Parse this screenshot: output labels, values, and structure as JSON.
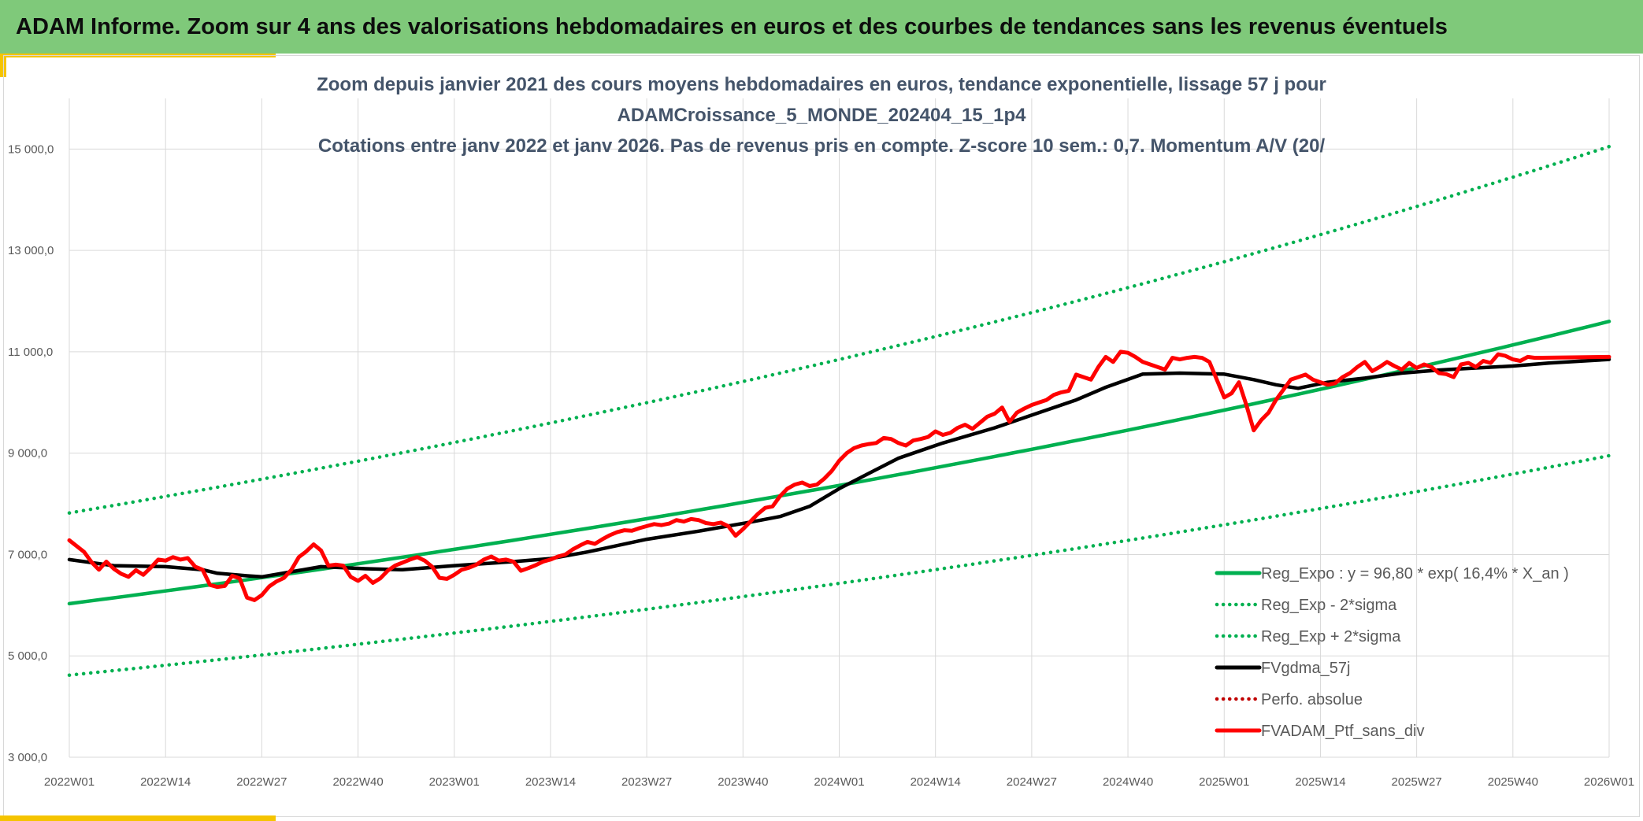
{
  "header": {
    "title": "ADAM Informe. Zoom sur 4 ans des valorisations hebdomadaires en euros et des courbes de tendances sans les revenus éventuels"
  },
  "colors": {
    "banner": "#7fc97a",
    "accent": "#f5c400",
    "trend": "#00b050",
    "fvgdma": "#000000",
    "perfo": "#c00000",
    "portfolio": "#ff0000",
    "grid": "#d9d9d9"
  },
  "chart_data": {
    "type": "line",
    "title_lines": [
      "Zoom depuis janvier 2021 des cours moyens hebdomadaires en euros, tendance exponentielle, lissage 57 j pour",
      "ADAMCroissance_5_MONDE_202404_15_1p4",
      "Cotations entre janv 2022 et janv 2026. Pas de revenus pris en compte. Z-score 10 sem.: 0,7. Momentum A/V (20/"
    ],
    "x_ticks": [
      "2022W01",
      "2022W14",
      "2022W27",
      "2022W40",
      "2023W01",
      "2023W14",
      "2023W27",
      "2023W40",
      "2024W01",
      "2024W14",
      "2024W27",
      "2024W40",
      "2025W01",
      "2025W14",
      "2025W27",
      "2025W40",
      "2026W01"
    ],
    "x_range": [
      0,
      208
    ],
    "y_ticks": [
      "3 000,0",
      "5 000,0",
      "7 000,0",
      "9 000,0",
      "11 000,0",
      "13 000,0",
      "15 000,0"
    ],
    "ylim": [
      3000,
      16000
    ],
    "grid": true,
    "legend_position": "bottom-right",
    "series": [
      {
        "name": "Reg_Expo : y = 96,80 * exp( 16,4% *  X_an )",
        "style": "solid",
        "color": "#00b050",
        "points": [
          [
            0,
            6030
          ],
          [
            208,
            11600
          ]
        ]
      },
      {
        "name": "Reg_Exp - 2*sigma",
        "style": "dotted",
        "color": "#00b050",
        "points": [
          [
            0,
            4620
          ],
          [
            208,
            8950
          ]
        ]
      },
      {
        "name": "Reg_Exp + 2*sigma",
        "style": "dotted",
        "color": "#00b050",
        "points": [
          [
            0,
            7820
          ],
          [
            208,
            15050
          ]
        ]
      },
      {
        "name": "FVgdma_57j",
        "style": "solid",
        "color": "#000000",
        "points": [
          [
            0,
            6900
          ],
          [
            6,
            6780
          ],
          [
            13,
            6760
          ],
          [
            18,
            6700
          ],
          [
            20,
            6630
          ],
          [
            24,
            6580
          ],
          [
            26,
            6560
          ],
          [
            30,
            6660
          ],
          [
            34,
            6760
          ],
          [
            40,
            6720
          ],
          [
            45,
            6700
          ],
          [
            52,
            6780
          ],
          [
            60,
            6860
          ],
          [
            65,
            6920
          ],
          [
            70,
            7050
          ],
          [
            78,
            7300
          ],
          [
            85,
            7460
          ],
          [
            92,
            7640
          ],
          [
            96,
            7750
          ],
          [
            100,
            7950
          ],
          [
            104,
            8300
          ],
          [
            108,
            8600
          ],
          [
            112,
            8900
          ],
          [
            118,
            9200
          ],
          [
            125,
            9500
          ],
          [
            130,
            9750
          ],
          [
            136,
            10050
          ],
          [
            140,
            10300
          ],
          [
            145,
            10560
          ],
          [
            150,
            10580
          ],
          [
            156,
            10560
          ],
          [
            160,
            10450
          ],
          [
            163,
            10350
          ],
          [
            166,
            10280
          ],
          [
            170,
            10400
          ],
          [
            175,
            10480
          ],
          [
            180,
            10580
          ],
          [
            185,
            10640
          ],
          [
            190,
            10680
          ],
          [
            195,
            10720
          ],
          [
            200,
            10780
          ],
          [
            208,
            10850
          ]
        ]
      },
      {
        "name": "Perfo. absolue",
        "style": "dotted",
        "color": "#c00000",
        "points": []
      },
      {
        "name": "FVADAM_Ptf_sans_div",
        "style": "solid",
        "color": "#ff0000",
        "points": [
          [
            0,
            7280
          ],
          [
            2,
            7050
          ],
          [
            3,
            6850
          ],
          [
            4,
            6700
          ],
          [
            5,
            6860
          ],
          [
            6,
            6720
          ],
          [
            7,
            6620
          ],
          [
            8,
            6560
          ],
          [
            9,
            6690
          ],
          [
            10,
            6600
          ],
          [
            11,
            6740
          ],
          [
            12,
            6900
          ],
          [
            13,
            6880
          ],
          [
            14,
            6950
          ],
          [
            15,
            6900
          ],
          [
            16,
            6930
          ],
          [
            17,
            6760
          ],
          [
            18,
            6700
          ],
          [
            19,
            6400
          ],
          [
            20,
            6360
          ],
          [
            21,
            6380
          ],
          [
            22,
            6580
          ],
          [
            23,
            6530
          ],
          [
            24,
            6150
          ],
          [
            25,
            6100
          ],
          [
            26,
            6200
          ],
          [
            27,
            6370
          ],
          [
            28,
            6470
          ],
          [
            29,
            6540
          ],
          [
            30,
            6700
          ],
          [
            31,
            6950
          ],
          [
            32,
            7060
          ],
          [
            33,
            7200
          ],
          [
            34,
            7080
          ],
          [
            35,
            6780
          ],
          [
            36,
            6800
          ],
          [
            37,
            6780
          ],
          [
            38,
            6560
          ],
          [
            39,
            6480
          ],
          [
            40,
            6580
          ],
          [
            41,
            6440
          ],
          [
            42,
            6530
          ],
          [
            43,
            6680
          ],
          [
            44,
            6780
          ],
          [
            45,
            6840
          ],
          [
            46,
            6900
          ],
          [
            47,
            6950
          ],
          [
            48,
            6880
          ],
          [
            49,
            6760
          ],
          [
            50,
            6540
          ],
          [
            51,
            6520
          ],
          [
            52,
            6600
          ],
          [
            53,
            6700
          ],
          [
            54,
            6740
          ],
          [
            55,
            6800
          ],
          [
            56,
            6900
          ],
          [
            57,
            6960
          ],
          [
            58,
            6880
          ],
          [
            59,
            6900
          ],
          [
            60,
            6860
          ],
          [
            61,
            6680
          ],
          [
            62,
            6730
          ],
          [
            63,
            6790
          ],
          [
            64,
            6860
          ],
          [
            65,
            6900
          ],
          [
            66,
            6960
          ],
          [
            67,
            7000
          ],
          [
            68,
            7100
          ],
          [
            69,
            7180
          ],
          [
            70,
            7250
          ],
          [
            71,
            7210
          ],
          [
            72,
            7300
          ],
          [
            73,
            7380
          ],
          [
            74,
            7440
          ],
          [
            75,
            7480
          ],
          [
            76,
            7470
          ],
          [
            77,
            7520
          ],
          [
            78,
            7560
          ],
          [
            79,
            7600
          ],
          [
            80,
            7580
          ],
          [
            81,
            7610
          ],
          [
            82,
            7680
          ],
          [
            83,
            7650
          ],
          [
            84,
            7700
          ],
          [
            85,
            7680
          ],
          [
            86,
            7620
          ],
          [
            87,
            7600
          ],
          [
            88,
            7630
          ],
          [
            89,
            7560
          ],
          [
            90,
            7370
          ],
          [
            91,
            7500
          ],
          [
            92,
            7650
          ],
          [
            93,
            7800
          ],
          [
            94,
            7920
          ],
          [
            95,
            7950
          ],
          [
            96,
            8150
          ],
          [
            97,
            8300
          ],
          [
            98,
            8380
          ],
          [
            99,
            8420
          ],
          [
            100,
            8350
          ],
          [
            101,
            8380
          ],
          [
            102,
            8500
          ],
          [
            103,
            8650
          ],
          [
            104,
            8850
          ],
          [
            105,
            9000
          ],
          [
            106,
            9100
          ],
          [
            107,
            9150
          ],
          [
            108,
            9180
          ],
          [
            109,
            9200
          ],
          [
            110,
            9300
          ],
          [
            111,
            9280
          ],
          [
            112,
            9200
          ],
          [
            113,
            9150
          ],
          [
            114,
            9250
          ],
          [
            115,
            9280
          ],
          [
            116,
            9320
          ],
          [
            117,
            9430
          ],
          [
            118,
            9360
          ],
          [
            119,
            9400
          ],
          [
            120,
            9500
          ],
          [
            121,
            9560
          ],
          [
            122,
            9480
          ],
          [
            123,
            9600
          ],
          [
            124,
            9720
          ],
          [
            125,
            9780
          ],
          [
            126,
            9900
          ],
          [
            127,
            9620
          ],
          [
            128,
            9800
          ],
          [
            129,
            9880
          ],
          [
            130,
            9950
          ],
          [
            131,
            10000
          ],
          [
            132,
            10050
          ],
          [
            133,
            10150
          ],
          [
            134,
            10200
          ],
          [
            135,
            10230
          ],
          [
            136,
            10550
          ],
          [
            137,
            10500
          ],
          [
            138,
            10450
          ],
          [
            139,
            10700
          ],
          [
            140,
            10900
          ],
          [
            141,
            10800
          ],
          [
            142,
            11000
          ],
          [
            143,
            10980
          ],
          [
            144,
            10900
          ],
          [
            145,
            10800
          ],
          [
            146,
            10750
          ],
          [
            147,
            10700
          ],
          [
            148,
            10650
          ],
          [
            149,
            10880
          ],
          [
            150,
            10850
          ],
          [
            151,
            10880
          ],
          [
            152,
            10900
          ],
          [
            153,
            10880
          ],
          [
            154,
            10800
          ],
          [
            155,
            10450
          ],
          [
            156,
            10100
          ],
          [
            157,
            10180
          ],
          [
            158,
            10400
          ],
          [
            159,
            9950
          ],
          [
            160,
            9450
          ],
          [
            161,
            9650
          ],
          [
            162,
            9800
          ],
          [
            163,
            10050
          ],
          [
            164,
            10250
          ],
          [
            165,
            10450
          ],
          [
            166,
            10500
          ],
          [
            167,
            10550
          ],
          [
            168,
            10450
          ],
          [
            169,
            10400
          ],
          [
            170,
            10350
          ],
          [
            171,
            10380
          ],
          [
            172,
            10500
          ],
          [
            173,
            10580
          ],
          [
            174,
            10700
          ],
          [
            175,
            10800
          ],
          [
            176,
            10620
          ],
          [
            177,
            10700
          ],
          [
            178,
            10800
          ],
          [
            179,
            10720
          ],
          [
            180,
            10650
          ],
          [
            181,
            10780
          ],
          [
            182,
            10680
          ],
          [
            183,
            10750
          ],
          [
            184,
            10700
          ],
          [
            185,
            10580
          ],
          [
            186,
            10560
          ],
          [
            187,
            10500
          ],
          [
            188,
            10750
          ],
          [
            189,
            10780
          ],
          [
            190,
            10700
          ],
          [
            191,
            10820
          ],
          [
            192,
            10780
          ],
          [
            193,
            10950
          ],
          [
            194,
            10920
          ],
          [
            195,
            10850
          ],
          [
            196,
            10820
          ],
          [
            197,
            10900
          ],
          [
            198,
            10880
          ],
          [
            208,
            10900
          ]
        ]
      }
    ]
  }
}
